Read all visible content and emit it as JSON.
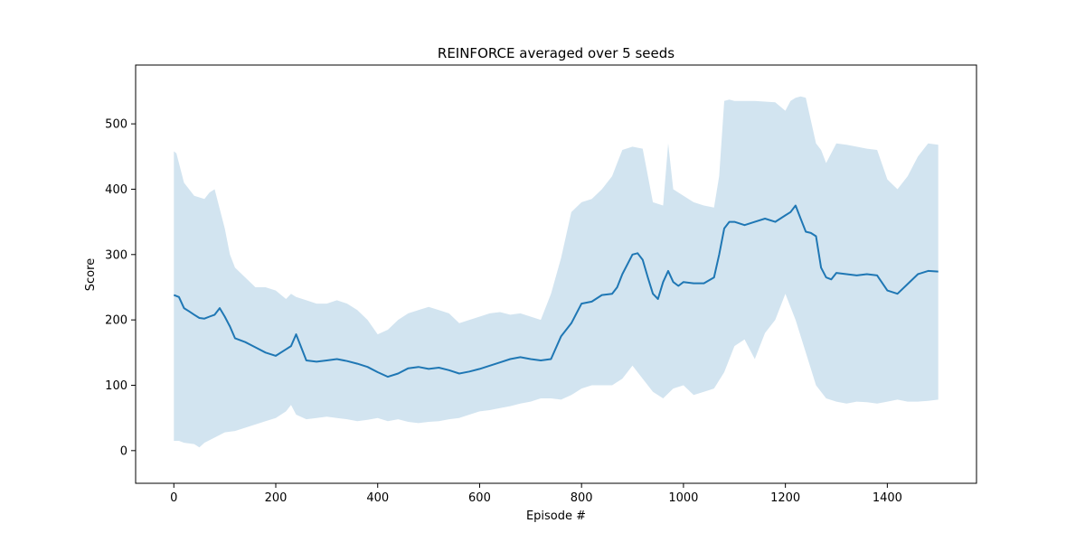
{
  "chart_data": {
    "type": "line",
    "title": "REINFORCE averaged over 5 seeds",
    "xlabel": "Episode #",
    "ylabel": "Score",
    "xlim": [
      -75,
      1575
    ],
    "ylim": [
      -50,
      590
    ],
    "xticks": [
      0,
      200,
      400,
      600,
      800,
      1000,
      1200,
      1400
    ],
    "yticks": [
      0,
      100,
      200,
      300,
      400,
      500
    ],
    "grid": false,
    "legend": "none",
    "colors": {
      "line": "#1f77b4",
      "band": "#1f77b4",
      "band_opacity": 0.2
    },
    "series": [
      {
        "kind": "mean",
        "x": [
          0,
          10,
          20,
          30,
          40,
          50,
          60,
          70,
          80,
          90,
          100,
          110,
          120,
          140,
          160,
          180,
          200,
          220,
          230,
          240,
          260,
          280,
          300,
          320,
          340,
          360,
          380,
          400,
          420,
          440,
          460,
          480,
          500,
          520,
          540,
          560,
          580,
          600,
          620,
          640,
          660,
          680,
          700,
          720,
          740,
          760,
          780,
          800,
          820,
          840,
          860,
          870,
          880,
          900,
          910,
          920,
          930,
          940,
          950,
          960,
          970,
          980,
          990,
          1000,
          1020,
          1040,
          1060,
          1070,
          1080,
          1090,
          1100,
          1120,
          1140,
          1160,
          1180,
          1200,
          1210,
          1220,
          1230,
          1240,
          1250,
          1260,
          1270,
          1280,
          1290,
          1300,
          1320,
          1340,
          1360,
          1380,
          1400,
          1420,
          1440,
          1460,
          1480,
          1500
        ],
        "y": [
          238,
          235,
          218,
          213,
          208,
          203,
          202,
          205,
          208,
          218,
          205,
          190,
          172,
          166,
          158,
          150,
          145,
          155,
          160,
          178,
          138,
          136,
          138,
          140,
          137,
          133,
          128,
          120,
          113,
          118,
          126,
          128,
          125,
          127,
          123,
          118,
          121,
          125,
          130,
          135,
          140,
          143,
          140,
          138,
          140,
          175,
          195,
          225,
          228,
          238,
          240,
          250,
          270,
          300,
          302,
          292,
          265,
          240,
          232,
          258,
          275,
          258,
          252,
          258,
          256,
          256,
          265,
          300,
          340,
          350,
          350,
          345,
          350,
          355,
          350,
          360,
          365,
          375,
          355,
          335,
          333,
          328,
          280,
          265,
          262,
          272,
          270,
          268,
          270,
          268,
          245,
          240,
          255,
          270,
          275,
          274
        ]
      },
      {
        "kind": "upper",
        "x": [
          0,
          5,
          10,
          20,
          40,
          60,
          70,
          80,
          90,
          100,
          110,
          120,
          140,
          160,
          180,
          200,
          220,
          230,
          240,
          260,
          280,
          300,
          320,
          340,
          360,
          380,
          400,
          420,
          440,
          460,
          480,
          500,
          520,
          540,
          560,
          580,
          600,
          620,
          640,
          660,
          680,
          700,
          720,
          740,
          760,
          780,
          800,
          820,
          840,
          860,
          870,
          880,
          900,
          920,
          940,
          960,
          970,
          980,
          1000,
          1020,
          1040,
          1060,
          1070,
          1080,
          1090,
          1100,
          1140,
          1180,
          1200,
          1210,
          1220,
          1230,
          1240,
          1260,
          1270,
          1280,
          1300,
          1320,
          1340,
          1360,
          1380,
          1400,
          1420,
          1440,
          1460,
          1480,
          1500
        ],
        "y": [
          458,
          455,
          440,
          410,
          390,
          385,
          395,
          400,
          370,
          340,
          300,
          280,
          265,
          250,
          250,
          245,
          232,
          240,
          235,
          230,
          225,
          225,
          230,
          225,
          215,
          200,
          178,
          185,
          200,
          210,
          215,
          220,
          215,
          210,
          195,
          200,
          205,
          210,
          212,
          208,
          210,
          205,
          200,
          240,
          295,
          365,
          380,
          385,
          400,
          420,
          440,
          460,
          465,
          462,
          380,
          375,
          470,
          400,
          390,
          380,
          375,
          372,
          420,
          535,
          537,
          535,
          535,
          533,
          520,
          535,
          540,
          542,
          540,
          470,
          460,
          440,
          470,
          468,
          465,
          462,
          460,
          415,
          400,
          420,
          450,
          470,
          468
        ]
      },
      {
        "kind": "lower",
        "x": [
          0,
          10,
          20,
          40,
          50,
          60,
          80,
          100,
          120,
          140,
          160,
          180,
          200,
          220,
          230,
          240,
          260,
          280,
          300,
          320,
          340,
          360,
          380,
          400,
          420,
          440,
          460,
          480,
          500,
          520,
          540,
          560,
          580,
          600,
          620,
          640,
          660,
          680,
          700,
          720,
          740,
          760,
          780,
          800,
          820,
          840,
          860,
          880,
          900,
          920,
          940,
          960,
          980,
          1000,
          1020,
          1040,
          1060,
          1080,
          1100,
          1120,
          1140,
          1160,
          1180,
          1200,
          1220,
          1240,
          1260,
          1270,
          1280,
          1300,
          1320,
          1340,
          1360,
          1380,
          1400,
          1420,
          1440,
          1460,
          1480,
          1500
        ],
        "y": [
          15,
          15,
          12,
          10,
          5,
          12,
          20,
          28,
          30,
          35,
          40,
          45,
          50,
          60,
          70,
          55,
          48,
          50,
          52,
          50,
          48,
          45,
          47,
          50,
          45,
          48,
          44,
          42,
          44,
          45,
          48,
          50,
          55,
          60,
          62,
          65,
          68,
          72,
          75,
          80,
          80,
          78,
          85,
          95,
          100,
          100,
          100,
          110,
          130,
          110,
          90,
          80,
          95,
          100,
          85,
          90,
          95,
          120,
          160,
          170,
          140,
          180,
          200,
          240,
          200,
          150,
          100,
          90,
          80,
          75,
          72,
          75,
          74,
          72,
          75,
          78,
          75,
          75,
          76,
          78
        ]
      }
    ]
  }
}
